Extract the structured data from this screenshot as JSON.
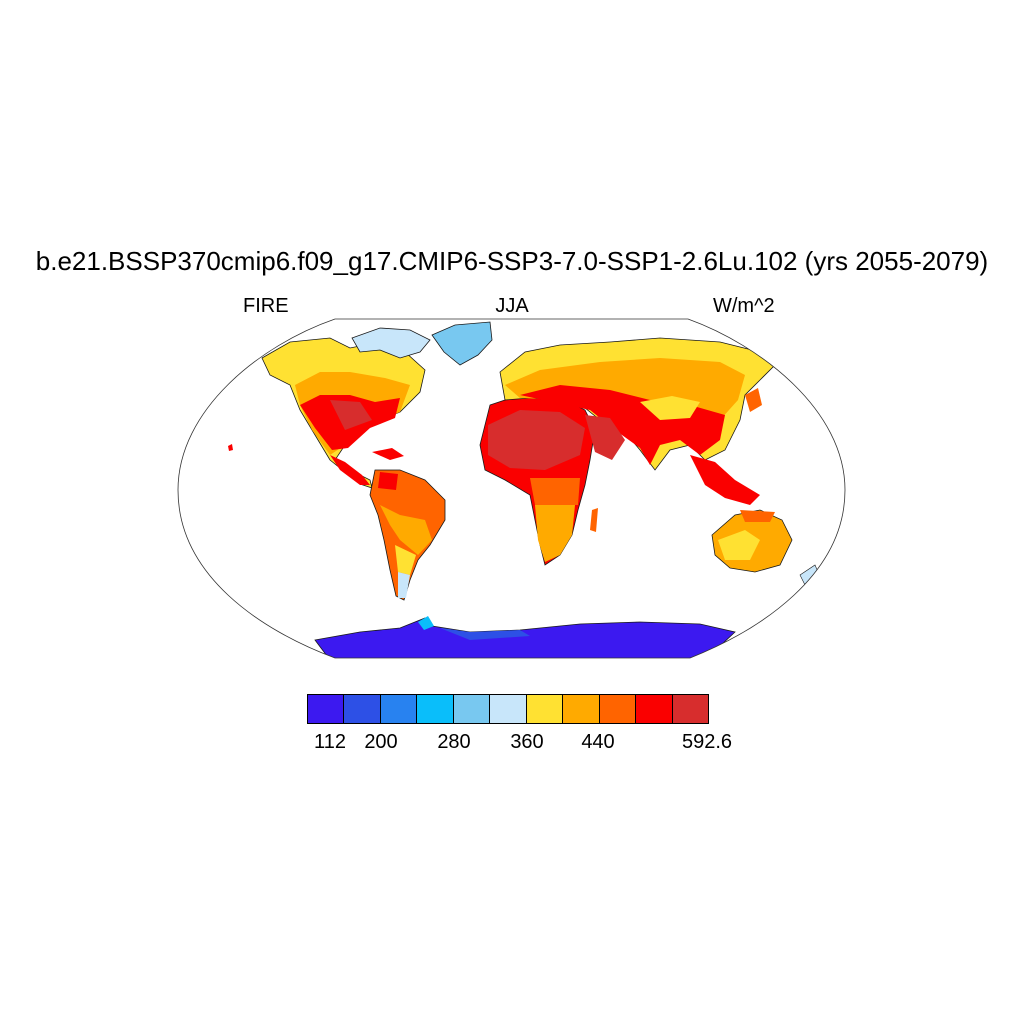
{
  "title": "b.e21.BSSP370cmip6.f09_g17.CMIP6-SSP3-7.0-SSP1-2.6Lu.102 (yrs 2055-2079)",
  "left_label": "FIRE",
  "center_label": "JJA",
  "right_label": "W/m^2",
  "colorbar": {
    "colors": [
      "#3c19f0",
      "#2d50e6",
      "#2882f0",
      "#0abefa",
      "#78c8f0",
      "#c8e6fa",
      "#ffe132",
      "#ffaa00",
      "#ff6400",
      "#fa0000",
      "#d72d2d"
    ],
    "tick_labels": [
      "112",
      "200",
      "280",
      "360",
      "440",
      "592.6"
    ]
  }
}
